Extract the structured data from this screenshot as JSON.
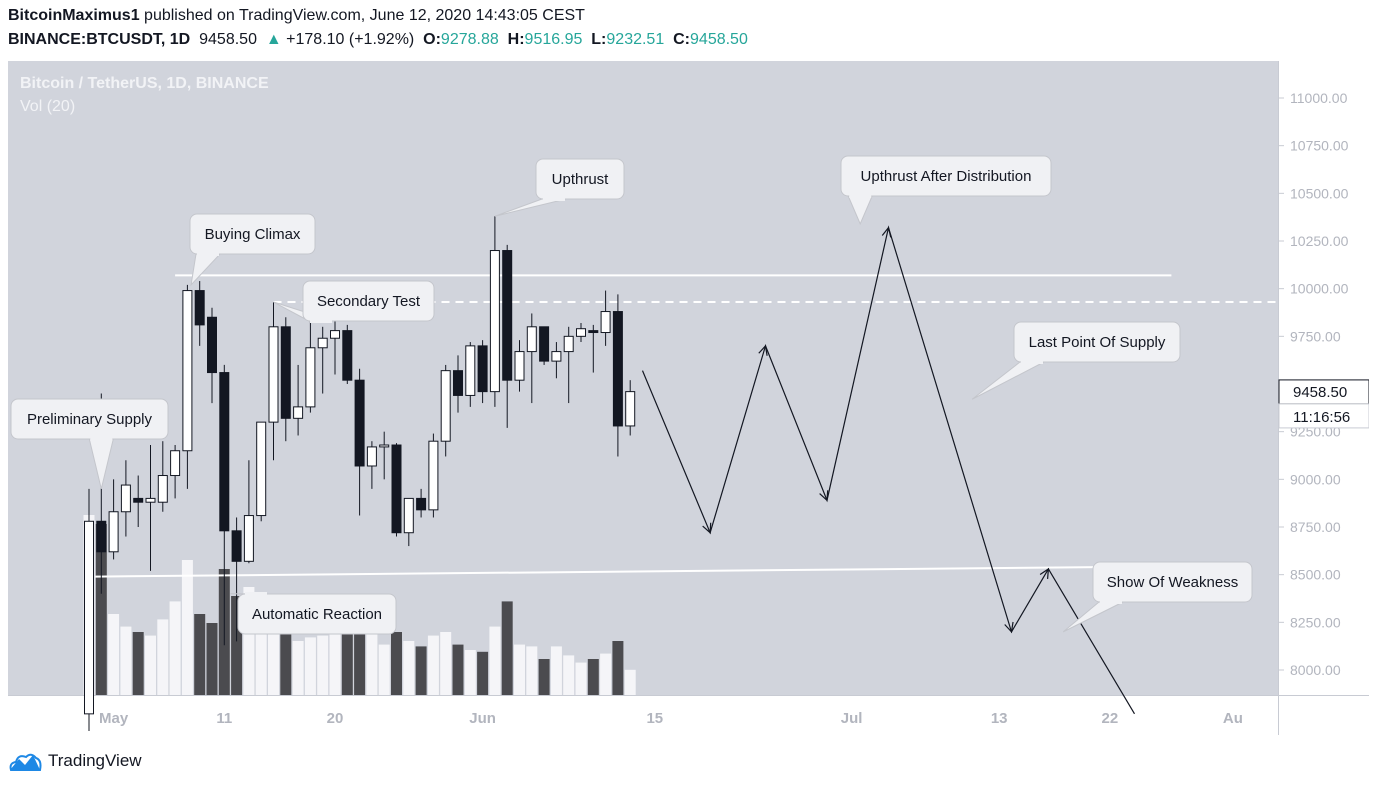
{
  "header": {
    "author": "BitcoinMaximus1",
    "published": "published on TradingView.com, June 12, 2020 14:43:05 CEST",
    "symbol": "BINANCE:BTCUSDT, 1D",
    "last": "9458.50",
    "arrow": "▲",
    "change": "+178.10 (+1.92%)",
    "o_label": "O:",
    "o_value": "9278.88",
    "h_label": "H:",
    "h_value": "9516.95",
    "l_label": "L:",
    "l_value": "9232.51",
    "c_label": "C:",
    "c_value": "9458.50"
  },
  "footer": {
    "brand": "TradingView",
    "logo_icon": "tradingview-cloud-icon"
  },
  "chart_data": {
    "type": "candlestick",
    "title": "Bitcoin / TetherUS, 1D, BINANCE",
    "subtitle": "Vol (20)",
    "ylim": [
      7880,
      11200
    ],
    "yticks": [
      "11000.00",
      "10750.00",
      "10500.00",
      "10250.00",
      "10000.00",
      "9750.00",
      "9500.00",
      "9250.00",
      "9000.00",
      "8750.00",
      "8500.00",
      "8250.00",
      "8000.00"
    ],
    "ytick_values": [
      11000,
      10750,
      10500,
      10250,
      10000,
      9750,
      9500,
      9250,
      9000,
      8750,
      8500,
      8250,
      8000
    ],
    "x_ticks": [
      {
        "label": "May",
        "day": 2
      },
      {
        "label": "11",
        "day": 11
      },
      {
        "label": "20",
        "day": 20
      },
      {
        "label": "Jun",
        "day": 32
      },
      {
        "label": "15",
        "day": 46
      },
      {
        "label": "Jul",
        "day": 62
      },
      {
        "label": "13",
        "day": 74
      },
      {
        "label": "22",
        "day": 83
      },
      {
        "label": "Au",
        "day": 93
      }
    ],
    "date_start": "2020-04-30",
    "last_price_label": "9458.50",
    "countdown_label": "11:16:56",
    "colors": {
      "background": "#d1d4dc",
      "up": "#ffffff",
      "down": "#131722",
      "vol_up": "#f5f5f8",
      "vol_down": "#4b4b4f",
      "outline": "#131722"
    },
    "candles": [
      {
        "day": 0,
        "o": 7770,
        "h": 8950,
        "l": 7680,
        "c": 8780,
        "v": 1.0
      },
      {
        "day": 1,
        "o": 8780,
        "h": 9450,
        "l": 8400,
        "c": 8620,
        "v": 0.95
      },
      {
        "day": 2,
        "o": 8620,
        "h": 9000,
        "l": 8580,
        "c": 8830,
        "v": 0.45
      },
      {
        "day": 3,
        "o": 8830,
        "h": 9100,
        "l": 8700,
        "c": 8970,
        "v": 0.38
      },
      {
        "day": 4,
        "o": 8900,
        "h": 9020,
        "l": 8750,
        "c": 8880,
        "v": 0.35
      },
      {
        "day": 5,
        "o": 8880,
        "h": 9180,
        "l": 8520,
        "c": 8900,
        "v": 0.33
      },
      {
        "day": 6,
        "o": 8880,
        "h": 9200,
        "l": 8830,
        "c": 9020,
        "v": 0.42
      },
      {
        "day": 7,
        "o": 9020,
        "h": 9180,
        "l": 8900,
        "c": 9150,
        "v": 0.52
      },
      {
        "day": 8,
        "o": 9150,
        "h": 10020,
        "l": 8950,
        "c": 9990,
        "v": 0.75
      },
      {
        "day": 9,
        "o": 9990,
        "h": 10040,
        "l": 9700,
        "c": 9810,
        "v": 0.45
      },
      {
        "day": 10,
        "o": 9850,
        "h": 9900,
        "l": 9400,
        "c": 9560,
        "v": 0.4
      },
      {
        "day": 11,
        "o": 9560,
        "h": 9600,
        "l": 8130,
        "c": 8730,
        "v": 0.7
      },
      {
        "day": 12,
        "o": 8730,
        "h": 8800,
        "l": 8150,
        "c": 8570,
        "v": 0.55
      },
      {
        "day": 13,
        "o": 8570,
        "h": 9100,
        "l": 8560,
        "c": 8810,
        "v": 0.6
      },
      {
        "day": 14,
        "o": 8810,
        "h": 9300,
        "l": 8780,
        "c": 9300,
        "v": 0.45
      },
      {
        "day": 15,
        "o": 9300,
        "h": 9930,
        "l": 9100,
        "c": 9800,
        "v": 0.5
      },
      {
        "day": 16,
        "o": 9800,
        "h": 9850,
        "l": 9200,
        "c": 9320,
        "v": 0.52
      },
      {
        "day": 17,
        "o": 9320,
        "h": 9600,
        "l": 9230,
        "c": 9380,
        "v": 0.3
      },
      {
        "day": 18,
        "o": 9380,
        "h": 9850,
        "l": 9350,
        "c": 9690,
        "v": 0.32
      },
      {
        "day": 19,
        "o": 9690,
        "h": 9800,
        "l": 9450,
        "c": 9740,
        "v": 0.33
      },
      {
        "day": 20,
        "o": 9740,
        "h": 9860,
        "l": 9550,
        "c": 9780,
        "v": 0.38
      },
      {
        "day": 21,
        "o": 9780,
        "h": 9810,
        "l": 9500,
        "c": 9520,
        "v": 0.4
      },
      {
        "day": 22,
        "o": 9520,
        "h": 9580,
        "l": 8810,
        "c": 9070,
        "v": 0.45
      },
      {
        "day": 23,
        "o": 9070,
        "h": 9200,
        "l": 8950,
        "c": 9170,
        "v": 0.35
      },
      {
        "day": 24,
        "o": 9170,
        "h": 9250,
        "l": 9000,
        "c": 9180,
        "v": 0.28
      },
      {
        "day": 25,
        "o": 9180,
        "h": 9190,
        "l": 8700,
        "c": 8720,
        "v": 0.35
      },
      {
        "day": 26,
        "o": 8720,
        "h": 8900,
        "l": 8650,
        "c": 8900,
        "v": 0.3
      },
      {
        "day": 27,
        "o": 8900,
        "h": 8950,
        "l": 8800,
        "c": 8840,
        "v": 0.27
      },
      {
        "day": 28,
        "o": 8840,
        "h": 9240,
        "l": 8800,
        "c": 9200,
        "v": 0.33
      },
      {
        "day": 29,
        "o": 9200,
        "h": 9600,
        "l": 9120,
        "c": 9570,
        "v": 0.35
      },
      {
        "day": 30,
        "o": 9570,
        "h": 9650,
        "l": 9350,
        "c": 9440,
        "v": 0.28
      },
      {
        "day": 31,
        "o": 9440,
        "h": 9720,
        "l": 9380,
        "c": 9700,
        "v": 0.25
      },
      {
        "day": 32,
        "o": 9700,
        "h": 9730,
        "l": 9400,
        "c": 9460,
        "v": 0.24
      },
      {
        "day": 33,
        "o": 9460,
        "h": 10380,
        "l": 9380,
        "c": 10200,
        "v": 0.38
      },
      {
        "day": 34,
        "o": 10200,
        "h": 10230,
        "l": 9270,
        "c": 9520,
        "v": 0.52
      },
      {
        "day": 35,
        "o": 9520,
        "h": 9730,
        "l": 9460,
        "c": 9670,
        "v": 0.28
      },
      {
        "day": 36,
        "o": 9670,
        "h": 9870,
        "l": 9400,
        "c": 9800,
        "v": 0.27
      },
      {
        "day": 37,
        "o": 9800,
        "h": 9800,
        "l": 9600,
        "c": 9620,
        "v": 0.2
      },
      {
        "day": 38,
        "o": 9620,
        "h": 9720,
        "l": 9530,
        "c": 9670,
        "v": 0.27
      },
      {
        "day": 39,
        "o": 9670,
        "h": 9800,
        "l": 9400,
        "c": 9750,
        "v": 0.22
      },
      {
        "day": 40,
        "o": 9750,
        "h": 9820,
        "l": 9720,
        "c": 9790,
        "v": 0.18
      },
      {
        "day": 41,
        "o": 9780,
        "h": 9810,
        "l": 9560,
        "c": 9770,
        "v": 0.2
      },
      {
        "day": 42,
        "o": 9770,
        "h": 9990,
        "l": 9700,
        "c": 9880,
        "v": 0.23
      },
      {
        "day": 43,
        "o": 9880,
        "h": 9970,
        "l": 9120,
        "c": 9280,
        "v": 0.3
      },
      {
        "day": 44,
        "o": 9280,
        "h": 9520,
        "l": 9230,
        "c": 9460,
        "v": 0.14
      }
    ],
    "annotations": [
      {
        "text": "Preliminary Supply",
        "anchor": {
          "day": 1,
          "price": 8950
        }
      },
      {
        "text": "Buying Climax",
        "anchor": {
          "day": 8.3,
          "price": 10020
        }
      },
      {
        "text": "Secondary Test",
        "anchor": {
          "day": 15,
          "price": 9930
        }
      },
      {
        "text": "Automatic Reaction",
        "anchor": {
          "day": 11.5,
          "price": 8400
        }
      },
      {
        "text": "Upthrust",
        "anchor": {
          "day": 33,
          "price": 10380
        }
      },
      {
        "text": "Upthrust After Distribution",
        "anchor": {
          "day": 62.7,
          "price": 10340
        }
      },
      {
        "text": "Last Point Of Supply",
        "anchor": {
          "day": 71.8,
          "price": 9420
        }
      },
      {
        "text": "Show Of Weakness",
        "anchor": {
          "day": 79.2,
          "price": 8200
        }
      }
    ],
    "resistance_line": {
      "price": 10070,
      "from_day": 7,
      "to_day": 88
    },
    "resistance_dashed": {
      "price": 9930,
      "from_day": 15,
      "to_day": 999
    },
    "support_line": {
      "from": {
        "day": 0.5,
        "price": 8490
      },
      "to": {
        "day": 83,
        "price": 8540
      }
    },
    "projection_path": [
      {
        "day": 45,
        "price": 9570
      },
      {
        "day": 50.5,
        "price": 8720
      },
      {
        "day": 55,
        "price": 9700
      },
      {
        "day": 60,
        "price": 8890
      },
      {
        "day": 65,
        "price": 10320
      },
      {
        "day": 75,
        "price": 8200
      },
      {
        "day": 78,
        "price": 8530
      },
      {
        "day": 85,
        "price": 7770
      }
    ]
  }
}
